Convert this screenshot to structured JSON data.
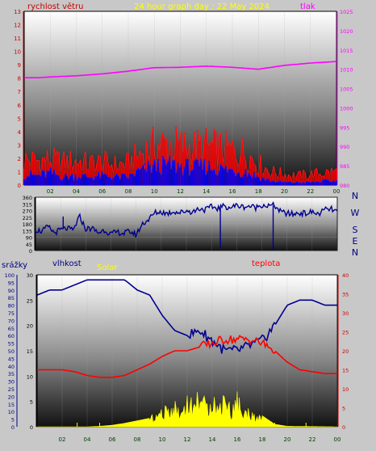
{
  "header": {
    "title": "24 hour graph day : 22 May 2024",
    "wind_label": "rychlost větru",
    "pressure_label": "tlak"
  },
  "colors": {
    "wind_gust": "#ff0000",
    "wind_avg": "#0000ff",
    "pressure": "#ff00ff",
    "direction": "#000090",
    "humidity": "#000090",
    "temperature": "#ff0000",
    "solar": "#ffff00",
    "rain": "#ffff00",
    "axis_green": "#004000",
    "axis_red": "#cc0000",
    "axis_magenta": "#ff00ff",
    "axis_blue": "#000080",
    "axis_dark": "#000000"
  },
  "chart_data": [
    {
      "id": "wind_pressure",
      "type": "line",
      "xlabel": "",
      "x_ticks": [
        "02",
        "04",
        "06",
        "08",
        "10",
        "12",
        "14",
        "16",
        "18",
        "20",
        "22",
        "00"
      ],
      "y_left": {
        "label": "rychlost větru",
        "range": [
          0,
          13
        ],
        "ticks": [
          0,
          1,
          2,
          3,
          4,
          5,
          6,
          7,
          8,
          9,
          10,
          11,
          12,
          13
        ]
      },
      "y_right": {
        "label": "tlak",
        "range": [
          980,
          1025
        ],
        "ticks": [
          980,
          985,
          990,
          995,
          1000,
          1005,
          1010,
          1015,
          1020,
          1025
        ]
      },
      "series": [
        {
          "name": "",
          "axis": "right",
          "x": [
            0,
            1,
            2,
            4,
            6,
            8,
            10,
            12,
            14,
            16,
            18,
            20,
            22,
            24
          ],
          "values": [
            1007.8,
            1007.8,
            1008,
            1008.3,
            1008.8,
            1009.5,
            1010.4,
            1010.5,
            1010.8,
            1010.5,
            1010.0,
            1011.0,
            1011.6,
            1012.0
          ]
        },
        {
          "name": "",
          "axis": "left",
          "x": [
            0,
            1,
            2,
            3,
            4,
            5,
            6,
            7,
            8,
            9,
            10,
            11,
            12,
            13,
            14,
            15,
            16,
            17,
            18,
            19,
            20,
            21,
            22,
            23,
            24
          ],
          "values": [
            1.9,
            1.8,
            1.9,
            1.7,
            1.8,
            1.6,
            1.7,
            1.5,
            1.6,
            2.4,
            2.9,
            3.1,
            2.9,
            2.8,
            2.9,
            2.7,
            2.6,
            2.4,
            1.6,
            1.0,
            0.8,
            0.7,
            0.8,
            0.9,
            1.0
          ]
        },
        {
          "name": "",
          "axis": "left",
          "x": [
            0,
            1,
            2,
            3,
            4,
            5,
            6,
            7,
            8,
            9,
            10,
            11,
            12,
            13,
            14,
            15,
            16,
            17,
            18,
            19,
            20,
            21,
            22,
            23,
            24
          ],
          "values": [
            0.8,
            0.7,
            0.9,
            0.6,
            0.7,
            0.6,
            0.7,
            0.6,
            0.6,
            1.1,
            1.4,
            1.5,
            1.4,
            1.3,
            1.4,
            1.2,
            1.1,
            1.0,
            0.6,
            0.3,
            0.2,
            0.2,
            0.2,
            0.3,
            0.3
          ]
        }
      ]
    },
    {
      "id": "wind_direction",
      "type": "line",
      "x_ticks": [],
      "y_left": {
        "label": "",
        "range": [
          0,
          360
        ],
        "ticks": [
          0,
          45,
          90,
          135,
          180,
          225,
          270,
          315,
          360
        ]
      },
      "y_right": {
        "label": "",
        "compass": [
          "N",
          "W",
          "S",
          "E",
          "N"
        ]
      },
      "series": [
        {
          "name": "",
          "x": [
            0,
            0.5,
            1,
            1.5,
            2,
            2.5,
            3,
            3.5,
            4,
            4.5,
            5,
            5.5,
            6,
            6.5,
            7,
            7.5,
            8,
            8.5,
            9,
            9.5,
            10,
            10.5,
            11,
            11.5,
            12,
            12.5,
            13,
            13.5,
            14,
            14.5,
            15,
            15.5,
            16,
            16.5,
            17,
            17.5,
            18,
            18.5,
            19,
            19.5,
            20,
            20.5,
            21,
            21.5,
            22,
            22.5,
            23,
            23.5,
            24
          ],
          "values": [
            140,
            130,
            160,
            120,
            140,
            150,
            135,
            230,
            145,
            150,
            120,
            140,
            110,
            125,
            115,
            130,
            105,
            180,
            210,
            255,
            260,
            250,
            265,
            255,
            270,
            260,
            285,
            275,
            295,
            285,
            300,
            290,
            305,
            295,
            300,
            290,
            310,
            300,
            305,
            260,
            250,
            245,
            255,
            250,
            260,
            245,
            275,
            280,
            260
          ]
        }
      ]
    },
    {
      "id": "rain_humidity_solar_temp",
      "type": "line",
      "x_ticks": [
        "02",
        "04",
        "06",
        "08",
        "10",
        "12",
        "14",
        "16",
        "18",
        "20",
        "22",
        "00"
      ],
      "y_rain": {
        "label": "srážky",
        "range": [
          0,
          100
        ],
        "ticks": [
          0,
          5,
          10,
          15,
          20,
          25,
          30,
          35,
          40,
          45,
          50,
          55,
          60,
          65,
          70,
          75,
          80,
          85,
          90,
          95,
          100
        ]
      },
      "y_humidity": {
        "label": "vlhkost",
        "range": [
          0,
          30
        ],
        "ticks": [
          0,
          5,
          10,
          15,
          20,
          25,
          30
        ]
      },
      "y_solar": {
        "label": "Solar"
      },
      "y_temp": {
        "label": "teplota",
        "range": [
          0,
          40
        ],
        "ticks": [
          0,
          5,
          10,
          15,
          20,
          25,
          30,
          35,
          40
        ]
      },
      "series": [
        {
          "name": "",
          "axis": "humidity",
          "x": [
            0,
            1,
            2,
            3,
            4,
            5,
            6,
            7,
            8,
            9,
            10,
            11,
            12,
            13,
            14,
            15,
            16,
            17,
            18,
            19,
            20,
            21,
            22,
            23,
            24
          ],
          "values": [
            26,
            27,
            27,
            28,
            29,
            29,
            29,
            29,
            27,
            26,
            22,
            19,
            18,
            19,
            17,
            15,
            15,
            16,
            17,
            20,
            24,
            25,
            25,
            24,
            24
          ]
        },
        {
          "name": "",
          "axis": "temp",
          "x": [
            0,
            1,
            2,
            3,
            4,
            5,
            6,
            7,
            8,
            9,
            10,
            11,
            12,
            13,
            14,
            15,
            16,
            17,
            18,
            19,
            20,
            21,
            22,
            23,
            24
          ],
          "values": [
            15,
            15,
            15,
            14.5,
            13.5,
            13,
            13,
            13.5,
            15,
            16.5,
            18.5,
            20,
            20,
            21,
            22,
            23,
            23,
            23,
            22,
            20,
            17,
            15,
            14.5,
            14,
            14
          ]
        },
        {
          "name": "",
          "axis": "solar",
          "x": [
            0,
            4,
            5,
            6,
            7,
            8,
            9,
            10,
            11,
            11.5,
            12,
            12.5,
            13,
            13.5,
            14,
            14.5,
            15,
            15.5,
            16,
            16.5,
            17,
            17.5,
            18,
            19,
            20,
            24
          ],
          "values": [
            0,
            0,
            0.01,
            0.03,
            0.07,
            0.12,
            0.17,
            0.3,
            0.46,
            0.28,
            0.6,
            0.42,
            0.76,
            0.4,
            0.68,
            0.35,
            0.74,
            0.3,
            0.62,
            0.25,
            0.38,
            0.15,
            0.22,
            0.05,
            0.01,
            0
          ]
        }
      ]
    }
  ]
}
